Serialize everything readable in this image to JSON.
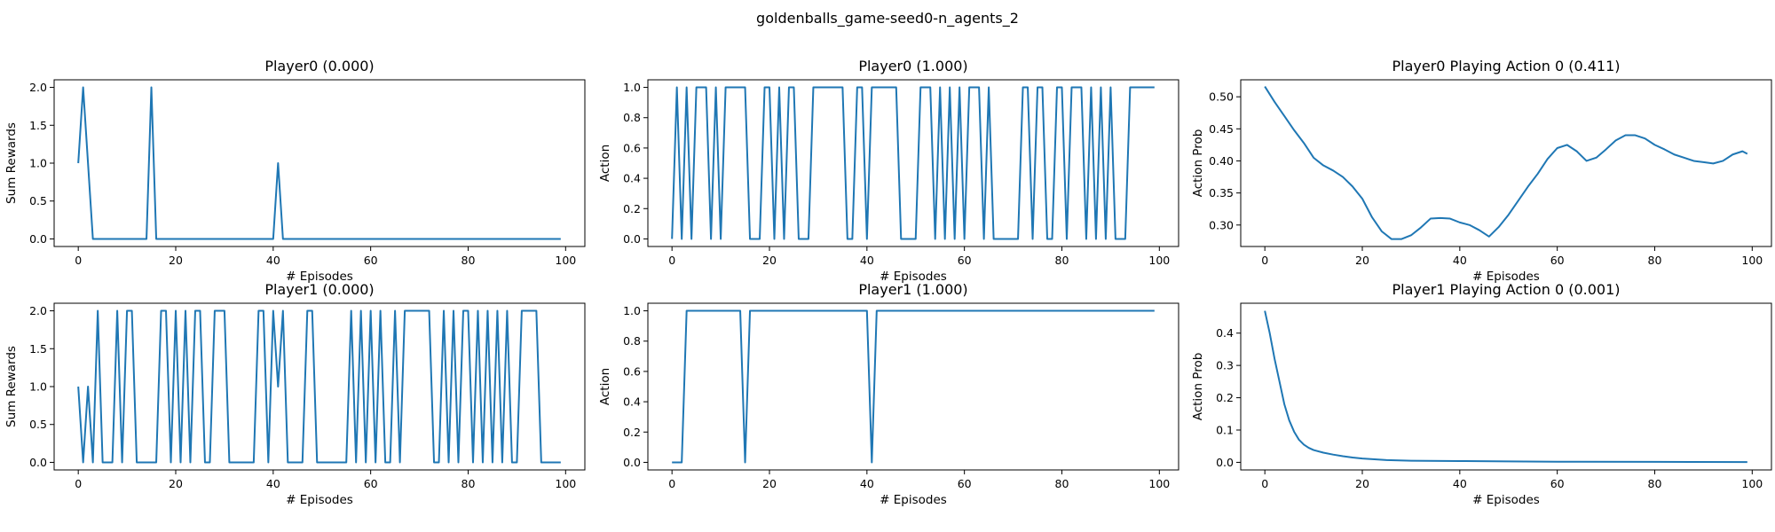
{
  "figure_title": "goldenballs_game-seed0-n_agents_2",
  "line_color": "#1f77b4",
  "chart_data": [
    {
      "type": "line",
      "title": "Player0 (0.000)",
      "xlabel": "# Episodes",
      "ylabel": "Sum Rewards",
      "xlim": [
        -4.95,
        103.95
      ],
      "ylim": [
        -0.1,
        2.1
      ],
      "xticks": [
        0,
        20,
        40,
        60,
        80,
        100
      ],
      "yticks": [
        0.0,
        0.5,
        1.0,
        1.5,
        2.0
      ],
      "ytick_labels": [
        "0.0",
        "0.5",
        "1.0",
        "1.5",
        "2.0"
      ],
      "x_start": 0,
      "values": [
        1,
        2,
        1,
        0,
        0,
        0,
        0,
        0,
        0,
        0,
        0,
        0,
        0,
        0,
        0,
        2,
        0,
        0,
        0,
        0,
        0,
        0,
        0,
        0,
        0,
        0,
        0,
        0,
        0,
        0,
        0,
        0,
        0,
        0,
        0,
        0,
        0,
        0,
        0,
        0,
        0,
        1,
        0,
        0,
        0,
        0,
        0,
        0,
        0,
        0,
        0,
        0,
        0,
        0,
        0,
        0,
        0,
        0,
        0,
        0,
        0,
        0,
        0,
        0,
        0,
        0,
        0,
        0,
        0,
        0,
        0,
        0,
        0,
        0,
        0,
        0,
        0,
        0,
        0,
        0,
        0,
        0,
        0,
        0,
        0,
        0,
        0,
        0,
        0,
        0,
        0,
        0,
        0,
        0,
        0,
        0,
        0,
        0,
        0,
        0
      ]
    },
    {
      "type": "line",
      "title": "Player0 (1.000)",
      "xlabel": "# Episodes",
      "ylabel": "Action",
      "xlim": [
        -4.95,
        103.95
      ],
      "ylim": [
        -0.05,
        1.05
      ],
      "xticks": [
        0,
        20,
        40,
        60,
        80,
        100
      ],
      "yticks": [
        0.0,
        0.2,
        0.4,
        0.6,
        0.8,
        1.0
      ],
      "ytick_labels": [
        "0.0",
        "0.2",
        "0.4",
        "0.6",
        "0.8",
        "1.0"
      ],
      "x_start": 0,
      "values": [
        0,
        1,
        0,
        1,
        0,
        1,
        1,
        1,
        0,
        1,
        0,
        1,
        1,
        1,
        1,
        1,
        0,
        0,
        0,
        1,
        1,
        0,
        1,
        0,
        1,
        1,
        0,
        0,
        0,
        1,
        1,
        1,
        1,
        1,
        1,
        1,
        0,
        0,
        1,
        1,
        0,
        1,
        1,
        1,
        1,
        1,
        1,
        0,
        0,
        0,
        0,
        1,
        1,
        1,
        0,
        1,
        0,
        1,
        0,
        1,
        0,
        1,
        1,
        1,
        0,
        1,
        0,
        0,
        0,
        0,
        0,
        0,
        1,
        1,
        0,
        1,
        1,
        0,
        0,
        1,
        1,
        0,
        1,
        1,
        1,
        0,
        1,
        0,
        1,
        0,
        1,
        0,
        0,
        0,
        1,
        1,
        1,
        1,
        1,
        1
      ]
    },
    {
      "type": "line",
      "title": "Player0 Playing Action 0 (0.411)",
      "xlabel": "# Episodes",
      "ylabel": "Action Prob",
      "xlim": [
        -4.95,
        103.95
      ],
      "ylim": [
        0.2665,
        0.5265
      ],
      "xticks": [
        0,
        20,
        40,
        60,
        80,
        100
      ],
      "yticks": [
        0.3,
        0.35,
        0.4,
        0.45,
        0.5
      ],
      "ytick_labels": [
        "0.30",
        "0.35",
        "0.40",
        "0.45",
        "0.50"
      ],
      "x": [
        0,
        2,
        4,
        6,
        8,
        10,
        12,
        14,
        16,
        18,
        20,
        22,
        24,
        26,
        28,
        30,
        32,
        34,
        36,
        38,
        40,
        42,
        44,
        46,
        48,
        50,
        52,
        54,
        56,
        58,
        60,
        62,
        64,
        66,
        68,
        70,
        72,
        74,
        76,
        78,
        80,
        82,
        84,
        86,
        88,
        90,
        92,
        94,
        96,
        98,
        99
      ],
      "values": [
        0.516,
        0.492,
        0.47,
        0.448,
        0.428,
        0.405,
        0.393,
        0.385,
        0.375,
        0.36,
        0.341,
        0.312,
        0.29,
        0.278,
        0.278,
        0.284,
        0.296,
        0.31,
        0.311,
        0.31,
        0.304,
        0.3,
        0.292,
        0.282,
        0.297,
        0.316,
        0.338,
        0.36,
        0.38,
        0.403,
        0.42,
        0.425,
        0.415,
        0.4,
        0.405,
        0.418,
        0.432,
        0.44,
        0.44,
        0.435,
        0.425,
        0.418,
        0.41,
        0.405,
        0.4,
        0.398,
        0.396,
        0.4,
        0.41,
        0.415,
        0.411
      ]
    },
    {
      "type": "line",
      "title": "Player1 (0.000)",
      "xlabel": "# Episodes",
      "ylabel": "Sum Rewards",
      "xlim": [
        -4.95,
        103.95
      ],
      "ylim": [
        -0.1,
        2.1
      ],
      "xticks": [
        0,
        20,
        40,
        60,
        80,
        100
      ],
      "yticks": [
        0.0,
        0.5,
        1.0,
        1.5,
        2.0
      ],
      "ytick_labels": [
        "0.0",
        "0.5",
        "1.0",
        "1.5",
        "2.0"
      ],
      "x_start": 0,
      "values": [
        1,
        0,
        1,
        0,
        2,
        0,
        0,
        0,
        2,
        0,
        2,
        2,
        0,
        0,
        0,
        0,
        0,
        2,
        2,
        0,
        2,
        0,
        2,
        0,
        2,
        2,
        0,
        0,
        2,
        2,
        2,
        0,
        0,
        0,
        0,
        0,
        0,
        2,
        2,
        0,
        2,
        1,
        2,
        0,
        0,
        0,
        0,
        2,
        2,
        0,
        0,
        0,
        0,
        0,
        0,
        0,
        2,
        0,
        2,
        0,
        2,
        0,
        2,
        0,
        0,
        2,
        0,
        2,
        2,
        2,
        2,
        2,
        2,
        0,
        0,
        2,
        0,
        2,
        0,
        2,
        2,
        0,
        2,
        0,
        2,
        0,
        2,
        0,
        2,
        0,
        0,
        2,
        2,
        2,
        2,
        0,
        0,
        0,
        0,
        0
      ]
    },
    {
      "type": "line",
      "title": "Player1 (1.000)",
      "xlabel": "# Episodes",
      "ylabel": "Action",
      "xlim": [
        -4.95,
        103.95
      ],
      "ylim": [
        -0.05,
        1.05
      ],
      "xticks": [
        0,
        20,
        40,
        60,
        80,
        100
      ],
      "yticks": [
        0.0,
        0.2,
        0.4,
        0.6,
        0.8,
        1.0
      ],
      "ytick_labels": [
        "0.0",
        "0.2",
        "0.4",
        "0.6",
        "0.8",
        "1.0"
      ],
      "x_start": 0,
      "values": [
        0,
        0,
        0,
        1,
        1,
        1,
        1,
        1,
        1,
        1,
        1,
        1,
        1,
        1,
        1,
        0,
        1,
        1,
        1,
        1,
        1,
        1,
        1,
        1,
        1,
        1,
        1,
        1,
        1,
        1,
        1,
        1,
        1,
        1,
        1,
        1,
        1,
        1,
        1,
        1,
        1,
        0,
        1,
        1,
        1,
        1,
        1,
        1,
        1,
        1,
        1,
        1,
        1,
        1,
        1,
        1,
        1,
        1,
        1,
        1,
        1,
        1,
        1,
        1,
        1,
        1,
        1,
        1,
        1,
        1,
        1,
        1,
        1,
        1,
        1,
        1,
        1,
        1,
        1,
        1,
        1,
        1,
        1,
        1,
        1,
        1,
        1,
        1,
        1,
        1,
        1,
        1,
        1,
        1,
        1,
        1,
        1,
        1,
        1,
        1
      ]
    },
    {
      "type": "line",
      "title": "Player1 Playing Action 0 (0.001)",
      "xlabel": "# Episodes",
      "ylabel": "Action Prob",
      "xlim": [
        -4.95,
        103.95
      ],
      "ylim": [
        -0.0235,
        0.4925
      ],
      "xticks": [
        0,
        20,
        40,
        60,
        80,
        100
      ],
      "yticks": [
        0.0,
        0.1,
        0.2,
        0.3,
        0.4
      ],
      "ytick_labels": [
        "0.0",
        "0.1",
        "0.2",
        "0.3",
        "0.4"
      ],
      "x": [
        0,
        1,
        2,
        3,
        4,
        5,
        6,
        7,
        8,
        9,
        10,
        12,
        14,
        16,
        18,
        20,
        25,
        30,
        40,
        50,
        60,
        80,
        99
      ],
      "values": [
        0.469,
        0.4,
        0.32,
        0.25,
        0.18,
        0.13,
        0.095,
        0.07,
        0.055,
        0.045,
        0.038,
        0.03,
        0.024,
        0.019,
        0.015,
        0.012,
        0.007,
        0.005,
        0.004,
        0.003,
        0.002,
        0.0015,
        0.001
      ]
    }
  ]
}
